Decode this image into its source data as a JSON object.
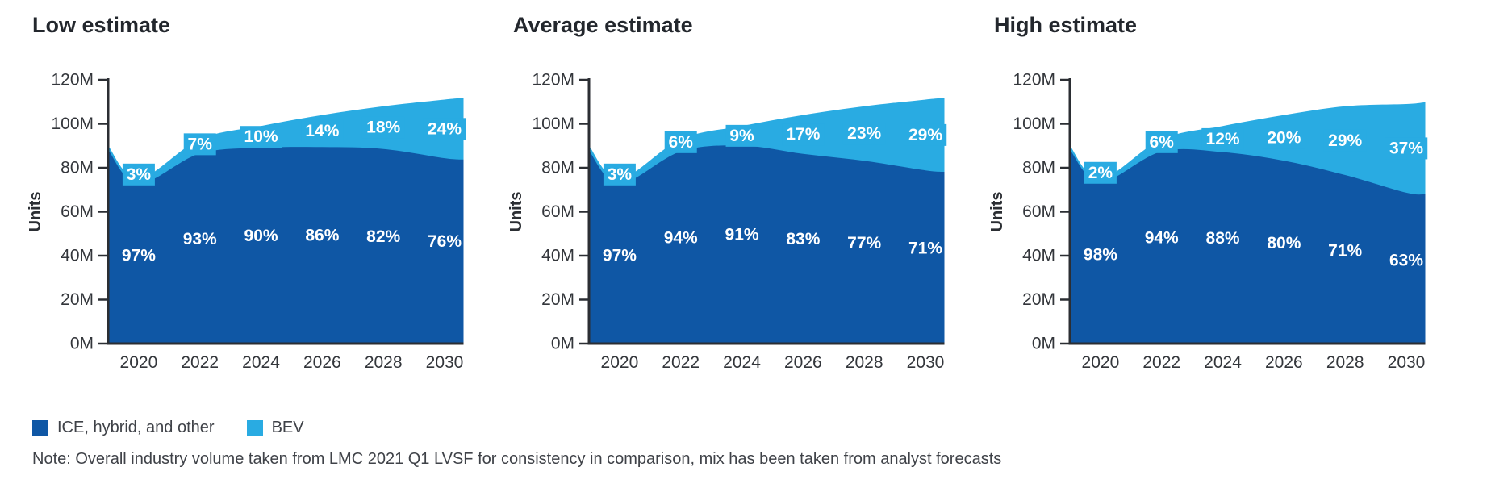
{
  "colors": {
    "ice": "#0F57A5",
    "bev": "#29ABE2",
    "axis": "#2B2E33",
    "tick_text": "#33363B",
    "title_text": "#23272D",
    "note_text": "#3F4248",
    "pct_text": "#FFFFFF"
  },
  "axis": {
    "ylabel": "Units",
    "yticks": [
      "0M",
      "20M",
      "40M",
      "60M",
      "80M",
      "100M",
      "120M"
    ],
    "ylim_m": [
      0,
      120
    ],
    "xticks": [
      "2020",
      "2022",
      "2024",
      "2026",
      "2028",
      "2030"
    ]
  },
  "chart_data": [
    {
      "type": "area",
      "stacked": true,
      "title": "Low estimate",
      "ylabel": "Units",
      "xlabel": "",
      "x": [
        2020,
        2022,
        2024,
        2026,
        2028,
        2030
      ],
      "total_units_m": [
        75,
        93,
        99,
        104,
        108,
        111
      ],
      "start_point": {
        "x": 2019,
        "total_units_m": 90,
        "bev_pct": 2
      },
      "series": [
        {
          "name": "ICE, hybrid, and other",
          "pct": [
            97,
            93,
            90,
            86,
            82,
            76
          ]
        },
        {
          "name": "BEV",
          "pct": [
            3,
            7,
            10,
            14,
            18,
            24
          ]
        }
      ]
    },
    {
      "type": "area",
      "stacked": true,
      "title": "Average estimate",
      "ylabel": "Units",
      "xlabel": "",
      "x": [
        2020,
        2022,
        2024,
        2026,
        2028,
        2030
      ],
      "total_units_m": [
        75,
        93,
        99,
        104,
        108,
        111
      ],
      "start_point": {
        "x": 2019,
        "total_units_m": 90,
        "bev_pct": 2.5
      },
      "series": [
        {
          "name": "ICE, hybrid, and other",
          "pct": [
            97,
            94,
            91,
            83,
            77,
            71
          ]
        },
        {
          "name": "BEV",
          "pct": [
            3,
            6,
            9,
            17,
            23,
            29
          ]
        }
      ]
    },
    {
      "type": "area",
      "stacked": true,
      "title": "High estimate",
      "ylabel": "Units",
      "xlabel": "",
      "x": [
        2020,
        2022,
        2024,
        2026,
        2028,
        2030
      ],
      "total_units_m": [
        75,
        93,
        99,
        104,
        108,
        109
      ],
      "start_point": {
        "x": 2019,
        "total_units_m": 90,
        "bev_pct": 2
      },
      "series": [
        {
          "name": "ICE, hybrid, and other",
          "pct": [
            98,
            94,
            88,
            80,
            71,
            63
          ]
        },
        {
          "name": "BEV",
          "pct": [
            2,
            6,
            12,
            20,
            29,
            37
          ]
        }
      ]
    }
  ],
  "legend": {
    "items": [
      {
        "label": "ICE, hybrid, and other",
        "color_key": "ice"
      },
      {
        "label": "BEV",
        "color_key": "bev"
      }
    ]
  },
  "note": "Note: Overall industry volume taken from LMC 2021 Q1 LVSF for consistency in comparison, mix has been taken from analyst forecasts"
}
